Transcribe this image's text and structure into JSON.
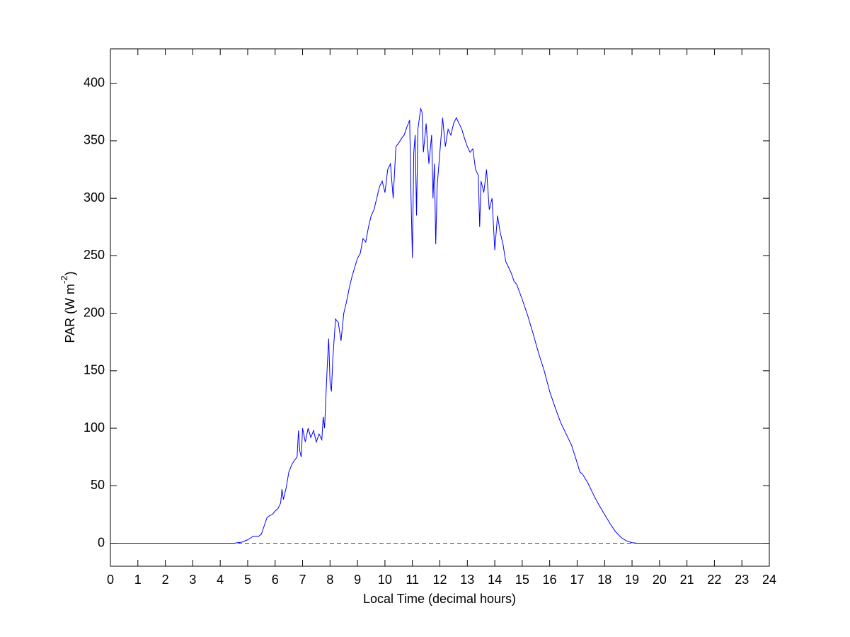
{
  "chart_data": {
    "type": "line",
    "xlabel": "Local Time (decimal hours)",
    "ylabel_parts": [
      "PAR (W m",
      "-2",
      ")"
    ],
    "xlim": [
      0,
      24
    ],
    "xticks": [
      0,
      1,
      2,
      3,
      4,
      5,
      6,
      7,
      8,
      9,
      10,
      11,
      12,
      13,
      14,
      15,
      16,
      17,
      18,
      19,
      20,
      21,
      22,
      23,
      24
    ],
    "ylim": [
      -20,
      430
    ],
    "yticks": [
      0,
      50,
      100,
      150,
      200,
      250,
      300,
      350,
      400
    ],
    "grid": false,
    "reference_line": {
      "value": 0,
      "color": "#ff0000",
      "dashed": true
    },
    "series": [
      {
        "color": "#0000ff",
        "x": [
          0,
          4.5,
          4.8,
          5.0,
          5.2,
          5.4,
          5.5,
          5.6,
          5.7,
          5.8,
          5.9,
          6.0,
          6.1,
          6.2,
          6.25,
          6.3,
          6.4,
          6.5,
          6.6,
          6.7,
          6.8,
          6.85,
          6.9,
          6.95,
          7.0,
          7.1,
          7.2,
          7.3,
          7.4,
          7.5,
          7.6,
          7.7,
          7.75,
          7.8,
          7.9,
          7.95,
          8.0,
          8.05,
          8.1,
          8.2,
          8.3,
          8.4,
          8.5,
          8.6,
          8.7,
          8.8,
          8.9,
          9.0,
          9.1,
          9.2,
          9.3,
          9.4,
          9.5,
          9.6,
          9.7,
          9.8,
          9.9,
          10.0,
          10.1,
          10.2,
          10.3,
          10.4,
          10.5,
          10.6,
          10.7,
          10.8,
          10.9,
          10.95,
          11.0,
          11.05,
          11.1,
          11.15,
          11.2,
          11.3,
          11.35,
          11.4,
          11.5,
          11.6,
          11.7,
          11.75,
          11.8,
          11.85,
          11.9,
          12.0,
          12.1,
          12.2,
          12.3,
          12.4,
          12.5,
          12.6,
          12.7,
          12.8,
          12.9,
          13.0,
          13.1,
          13.2,
          13.3,
          13.4,
          13.45,
          13.5,
          13.6,
          13.7,
          13.8,
          13.9,
          14.0,
          14.1,
          14.2,
          14.3,
          14.4,
          14.5,
          14.6,
          14.7,
          14.8,
          15.0,
          15.2,
          15.4,
          15.6,
          15.8,
          16.0,
          16.2,
          16.4,
          16.6,
          16.8,
          17.0,
          17.1,
          17.2,
          17.4,
          17.6,
          17.8,
          18.0,
          18.2,
          18.4,
          18.6,
          18.8,
          19.0,
          19.2,
          24
        ],
        "values": [
          0,
          0,
          1,
          3,
          6,
          6,
          8,
          15,
          22,
          24,
          25,
          28,
          30,
          35,
          47,
          38,
          48,
          62,
          68,
          72,
          75,
          98,
          80,
          75,
          100,
          88,
          100,
          92,
          98,
          88,
          95,
          90,
          110,
          100,
          155,
          178,
          140,
          132,
          160,
          195,
          192,
          176,
          200,
          210,
          222,
          232,
          240,
          248,
          252,
          265,
          262,
          275,
          285,
          290,
          300,
          310,
          315,
          305,
          325,
          330,
          300,
          345,
          348,
          352,
          355,
          362,
          368,
          300,
          248,
          340,
          355,
          285,
          360,
          378,
          375,
          340,
          365,
          330,
          355,
          300,
          330,
          260,
          310,
          340,
          370,
          345,
          360,
          355,
          365,
          370,
          365,
          360,
          352,
          345,
          340,
          343,
          325,
          320,
          275,
          315,
          305,
          325,
          290,
          300,
          255,
          285,
          270,
          260,
          245,
          240,
          235,
          228,
          225,
          212,
          198,
          182,
          165,
          150,
          132,
          118,
          105,
          95,
          85,
          70,
          62,
          60,
          52,
          42,
          33,
          25,
          17,
          10,
          5,
          2,
          0.5,
          0,
          0
        ]
      }
    ]
  }
}
